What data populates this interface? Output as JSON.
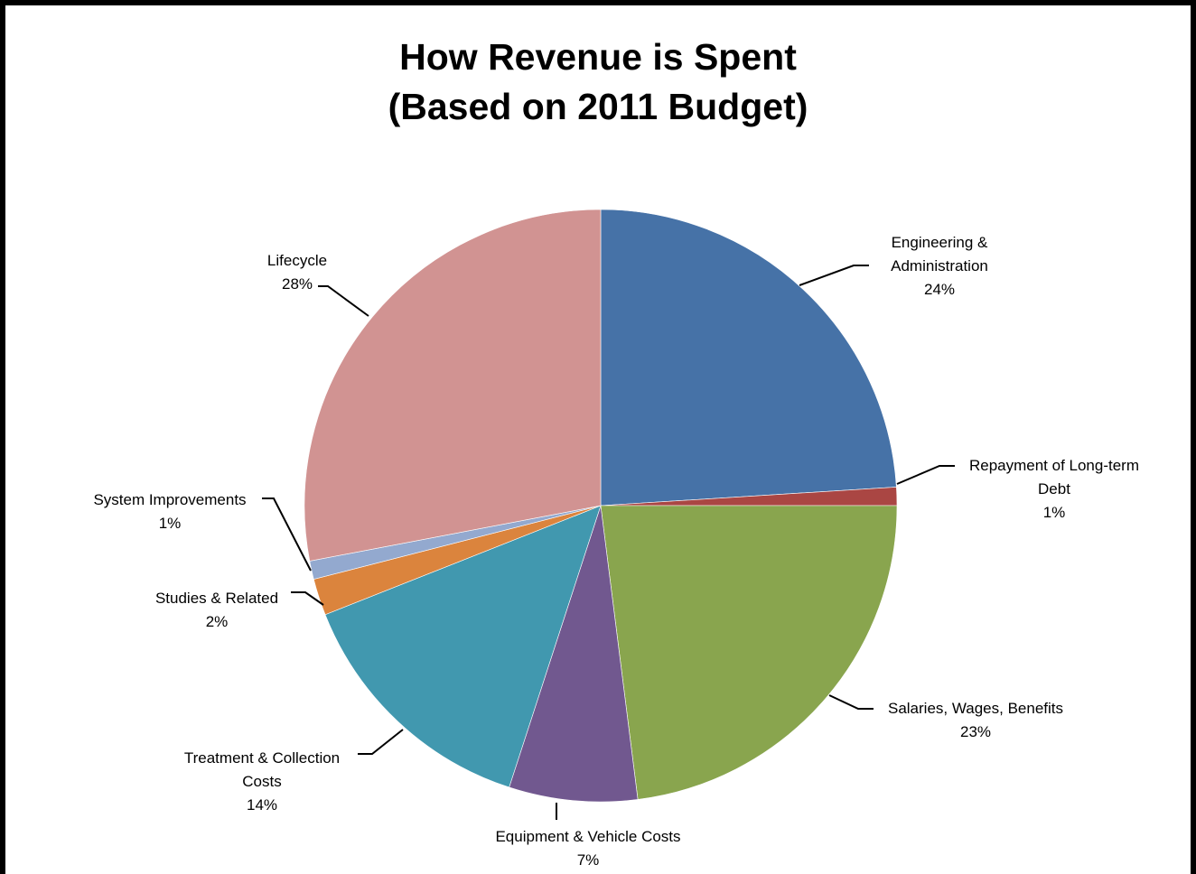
{
  "chart_data": {
    "type": "pie",
    "title": "How Revenue is Spent",
    "subtitle": "(Based on 2011 Budget)",
    "slices": [
      {
        "label": "Engineering & Administration",
        "label_lines": [
          "Engineering &",
          "Administration"
        ],
        "value": 24,
        "value_label": "24%",
        "color": "#4672A7"
      },
      {
        "label": "Repayment of Long-term Debt",
        "label_lines": [
          "Repayment of Long-term",
          "Debt"
        ],
        "value": 1,
        "value_label": "1%",
        "color": "#AA4643"
      },
      {
        "label": "Salaries, Wages, Benefits",
        "label_lines": [
          "Salaries, Wages, Benefits"
        ],
        "value": 23,
        "value_label": "23%",
        "color": "#89A54E"
      },
      {
        "label": "Equipment & Vehicle Costs",
        "label_lines": [
          "Equipment & Vehicle Costs"
        ],
        "value": 7,
        "value_label": "7%",
        "color": "#71588F"
      },
      {
        "label": "Treatment & Collection Costs",
        "label_lines": [
          "Treatment & Collection",
          "Costs"
        ],
        "value": 14,
        "value_label": "14%",
        "color": "#4198AF"
      },
      {
        "label": "Studies & Related",
        "label_lines": [
          "Studies & Related"
        ],
        "value": 2,
        "value_label": "2%",
        "color": "#DB843D"
      },
      {
        "label": "System Improvements",
        "label_lines": [
          "System Improvements"
        ],
        "value": 1,
        "value_label": "1%",
        "color": "#93A9CF"
      },
      {
        "label": "Lifecycle",
        "label_lines": [
          "Lifecycle"
        ],
        "value": 28,
        "value_label": "28%",
        "color": "#D19392"
      }
    ],
    "start_angle": "12 o'clock",
    "direction": "clockwise",
    "legend": "none",
    "data_labels": "outside with leader lines"
  }
}
